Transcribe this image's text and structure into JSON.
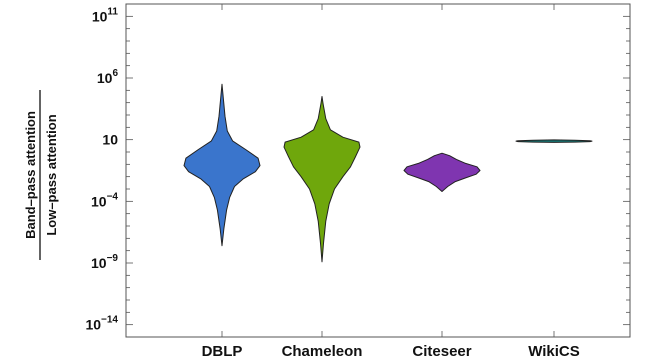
{
  "chart_data": {
    "type": "violin",
    "ylabel_numerator": "Band–pass attention",
    "ylabel_denominator": "Low–pass attention",
    "y_scale": "log10",
    "ylim_exponent": [
      -15,
      12
    ],
    "y_ticks": [
      {
        "exp": 11,
        "base": "10",
        "sup": "11"
      },
      {
        "exp": 6,
        "base": "10",
        "sup": "6"
      },
      {
        "exp": 1,
        "base": "10",
        "sup": ""
      },
      {
        "exp": -4,
        "base": "10",
        "sup": "−4"
      },
      {
        "exp": -9,
        "base": "10",
        "sup": "−9"
      },
      {
        "exp": -14,
        "base": "10",
        "sup": "−14"
      }
    ],
    "grid": false,
    "categories": [
      "DBLP",
      "Chameleon",
      "Citeseer",
      "WikiCS"
    ],
    "series": [
      {
        "category": "DBLP",
        "color": "#3a75cc",
        "profile": [
          [
            -7.6,
            0.0
          ],
          [
            -6.2,
            0.05
          ],
          [
            -4.7,
            0.12
          ],
          [
            -3.7,
            0.2
          ],
          [
            -2.8,
            0.33
          ],
          [
            -2.2,
            0.55
          ],
          [
            -1.6,
            0.88
          ],
          [
            -1.1,
            1.0
          ],
          [
            -0.5,
            0.95
          ],
          [
            0.2,
            0.62
          ],
          [
            0.9,
            0.28
          ],
          [
            1.7,
            0.14
          ],
          [
            2.9,
            0.08
          ],
          [
            4.2,
            0.04
          ],
          [
            5.5,
            0.0
          ]
        ]
      },
      {
        "category": "Chameleon",
        "color": "#6fa70c",
        "profile": [
          [
            -8.9,
            0.0
          ],
          [
            -7.4,
            0.04
          ],
          [
            -5.6,
            0.1
          ],
          [
            -4.2,
            0.19
          ],
          [
            -3.0,
            0.33
          ],
          [
            -2.0,
            0.55
          ],
          [
            -1.2,
            0.75
          ],
          [
            -0.4,
            0.88
          ],
          [
            0.4,
            1.0
          ],
          [
            0.8,
            0.97
          ],
          [
            1.2,
            0.55
          ],
          [
            1.8,
            0.22
          ],
          [
            2.7,
            0.1
          ],
          [
            3.9,
            0.03
          ],
          [
            4.5,
            0.0
          ]
        ]
      },
      {
        "category": "Citeseer",
        "color": "#7f35b0",
        "profile": [
          [
            -3.2,
            0.0
          ],
          [
            -2.8,
            0.15
          ],
          [
            -2.4,
            0.35
          ],
          [
            -2.1,
            0.62
          ],
          [
            -1.8,
            0.9
          ],
          [
            -1.5,
            1.0
          ],
          [
            -1.2,
            0.92
          ],
          [
            -0.9,
            0.6
          ],
          [
            -0.6,
            0.38
          ],
          [
            -0.3,
            0.2
          ],
          [
            -0.1,
            0.0
          ]
        ]
      },
      {
        "category": "WikiCS",
        "color": "#167a78",
        "profile": [
          [
            0.78,
            0.0
          ],
          [
            0.8,
            0.55
          ],
          [
            0.84,
            0.95
          ],
          [
            0.88,
            1.0
          ],
          [
            0.92,
            0.95
          ],
          [
            0.96,
            0.55
          ],
          [
            0.98,
            0.0
          ]
        ]
      }
    ]
  }
}
